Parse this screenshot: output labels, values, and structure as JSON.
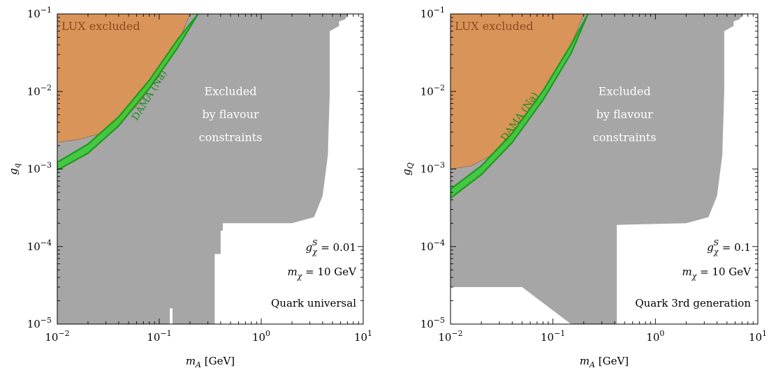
{
  "chart_data": [
    {
      "type": "area",
      "xlabel": "m_A [GeV]",
      "ylabel": "g_q",
      "xscale": "log",
      "yscale": "log",
      "xlim": [
        0.01,
        10
      ],
      "ylim": [
        1e-05,
        0.1
      ],
      "x_ticks": [
        {
          "value": 0.01,
          "base": "10",
          "exp": "−2"
        },
        {
          "value": 0.1,
          "base": "10",
          "exp": "−1"
        },
        {
          "value": 1,
          "base": "10",
          "exp": "0"
        },
        {
          "value": 10,
          "base": "10",
          "exp": "1"
        }
      ],
      "y_ticks": [
        {
          "value": 1e-05,
          "base": "10",
          "exp": "−5"
        },
        {
          "value": 0.0001,
          "base": "10",
          "exp": "−4"
        },
        {
          "value": 0.001,
          "base": "10",
          "exp": "−3"
        },
        {
          "value": 0.01,
          "base": "10",
          "exp": "−2"
        },
        {
          "value": 0.1,
          "base": "10",
          "exp": "−1"
        }
      ],
      "regions": [
        {
          "name": "flavour",
          "label_lines": [
            "Excluded",
            "by flavour",
            "constraints"
          ],
          "label_pos": [
            0.5,
            0.005
          ],
          "color": "#a6a6a6",
          "boundary": [
            [
              0.01,
              1e-05
            ],
            [
              0.127,
              1e-05
            ],
            [
              0.127,
              1.6e-05
            ],
            [
              0.135,
              1.6e-05
            ],
            [
              0.135,
              1e-05
            ],
            [
              0.35,
              1e-05
            ],
            [
              0.35,
              8e-05
            ],
            [
              0.4,
              8e-05
            ],
            [
              0.4,
              0.00016
            ],
            [
              0.42,
              0.00016
            ],
            [
              0.42,
              0.0002
            ],
            [
              2,
              0.0002
            ],
            [
              3.3,
              0.00024
            ],
            [
              4,
              0.00045
            ],
            [
              4.5,
              0.0015
            ],
            [
              4.7,
              0.01
            ],
            [
              4.7,
              0.06
            ],
            [
              5.8,
              0.07
            ],
            [
              5.8,
              0.08
            ],
            [
              6.6,
              0.085
            ],
            [
              7.2,
              0.1
            ],
            [
              0.01,
              0.1
            ]
          ]
        },
        {
          "name": "lux",
          "label": "LUX excluded",
          "label_pos": [
            0.011,
            0.062
          ],
          "color": "#d9945a",
          "boundary": [
            [
              0.01,
              0.0022
            ],
            [
              0.016,
              0.0024
            ],
            [
              0.025,
              0.0028
            ],
            [
              0.04,
              0.0038
            ],
            [
              0.06,
              0.0065
            ],
            [
              0.1,
              0.016
            ],
            [
              0.15,
              0.04
            ],
            [
              0.2,
              0.1
            ],
            [
              0.01,
              0.1
            ]
          ]
        }
      ],
      "series": [
        {
          "name": "DAMA (Na)",
          "label_pos": [
            0.085,
            0.0085
          ],
          "label_angle": -58,
          "color": "#33cc33",
          "x": [
            0.01,
            0.02,
            0.04,
            0.08,
            0.15,
            0.24
          ],
          "y_low": [
            0.00097,
            0.0016,
            0.0036,
            0.011,
            0.036,
            0.1
          ],
          "y_high": [
            0.00122,
            0.0021,
            0.0047,
            0.014,
            0.046,
            0.1
          ]
        }
      ],
      "annotations": [
        {
          "kind": "g",
          "sup": "S",
          "sub": "χ",
          "value": "= 0.01"
        },
        {
          "kind": "m",
          "sub": "χ",
          "value": "= 10 GeV"
        },
        {
          "kind": "text",
          "text": "Quark universal"
        }
      ]
    },
    {
      "type": "area",
      "xlabel": "m_A [GeV]",
      "ylabel": "g_Q",
      "xscale": "log",
      "yscale": "log",
      "xlim": [
        0.01,
        10
      ],
      "ylim": [
        1e-05,
        0.1
      ],
      "x_ticks": [
        {
          "value": 0.01,
          "base": "10",
          "exp": "−2"
        },
        {
          "value": 0.1,
          "base": "10",
          "exp": "−1"
        },
        {
          "value": 1,
          "base": "10",
          "exp": "0"
        },
        {
          "value": 10,
          "base": "10",
          "exp": "1"
        }
      ],
      "y_ticks": [
        {
          "value": 1e-05,
          "base": "10",
          "exp": "−5"
        },
        {
          "value": 0.0001,
          "base": "10",
          "exp": "−4"
        },
        {
          "value": 0.001,
          "base": "10",
          "exp": "−3"
        },
        {
          "value": 0.01,
          "base": "10",
          "exp": "−2"
        },
        {
          "value": 0.1,
          "base": "10",
          "exp": "−1"
        }
      ],
      "regions": [
        {
          "name": "flavour",
          "label_lines": [
            "Excluded",
            "by flavour",
            "constraints"
          ],
          "label_pos": [
            0.5,
            0.005
          ],
          "color": "#a6a6a6",
          "boundary": [
            [
              0.01,
              3e-05
            ],
            [
              0.05,
              3e-05
            ],
            [
              0.15,
              1e-05
            ],
            [
              0.42,
              1e-05
            ],
            [
              0.42,
              0.00019
            ],
            [
              2,
              0.0002
            ],
            [
              3.3,
              0.00024
            ],
            [
              4,
              0.00045
            ],
            [
              4.5,
              0.0015
            ],
            [
              4.7,
              0.01
            ],
            [
              4.7,
              0.06
            ],
            [
              5.8,
              0.07
            ],
            [
              5.8,
              0.08
            ],
            [
              6.6,
              0.085
            ],
            [
              7.2,
              0.1
            ],
            [
              0.01,
              0.1
            ]
          ]
        },
        {
          "name": "lux",
          "label": "LUX excluded",
          "label_pos": [
            0.011,
            0.062
          ],
          "color": "#d9945a",
          "boundary": [
            [
              0.01,
              0.001
            ],
            [
              0.016,
              0.0011
            ],
            [
              0.025,
              0.0015
            ],
            [
              0.04,
              0.0025
            ],
            [
              0.06,
              0.0055
            ],
            [
              0.1,
              0.016
            ],
            [
              0.15,
              0.04
            ],
            [
              0.2,
              0.1
            ],
            [
              0.01,
              0.1
            ]
          ]
        }
      ],
      "series": [
        {
          "name": "DAMA (Na)",
          "label_pos": [
            0.05,
            0.0045
          ],
          "label_angle": -55,
          "color": "#33cc33",
          "x": [
            0.01,
            0.02,
            0.04,
            0.08,
            0.15,
            0.22
          ],
          "y_low": [
            0.00042,
            0.00085,
            0.0022,
            0.0078,
            0.031,
            0.1
          ],
          "y_high": [
            0.00055,
            0.0011,
            0.0029,
            0.0102,
            0.04,
            0.1
          ]
        }
      ],
      "annotations": [
        {
          "kind": "g",
          "sup": "S",
          "sub": "χ",
          "value": "= 0.1"
        },
        {
          "kind": "m",
          "sub": "χ",
          "value": "= 10 GeV"
        },
        {
          "kind": "text",
          "text": "Quark 3rd generation"
        }
      ]
    }
  ]
}
